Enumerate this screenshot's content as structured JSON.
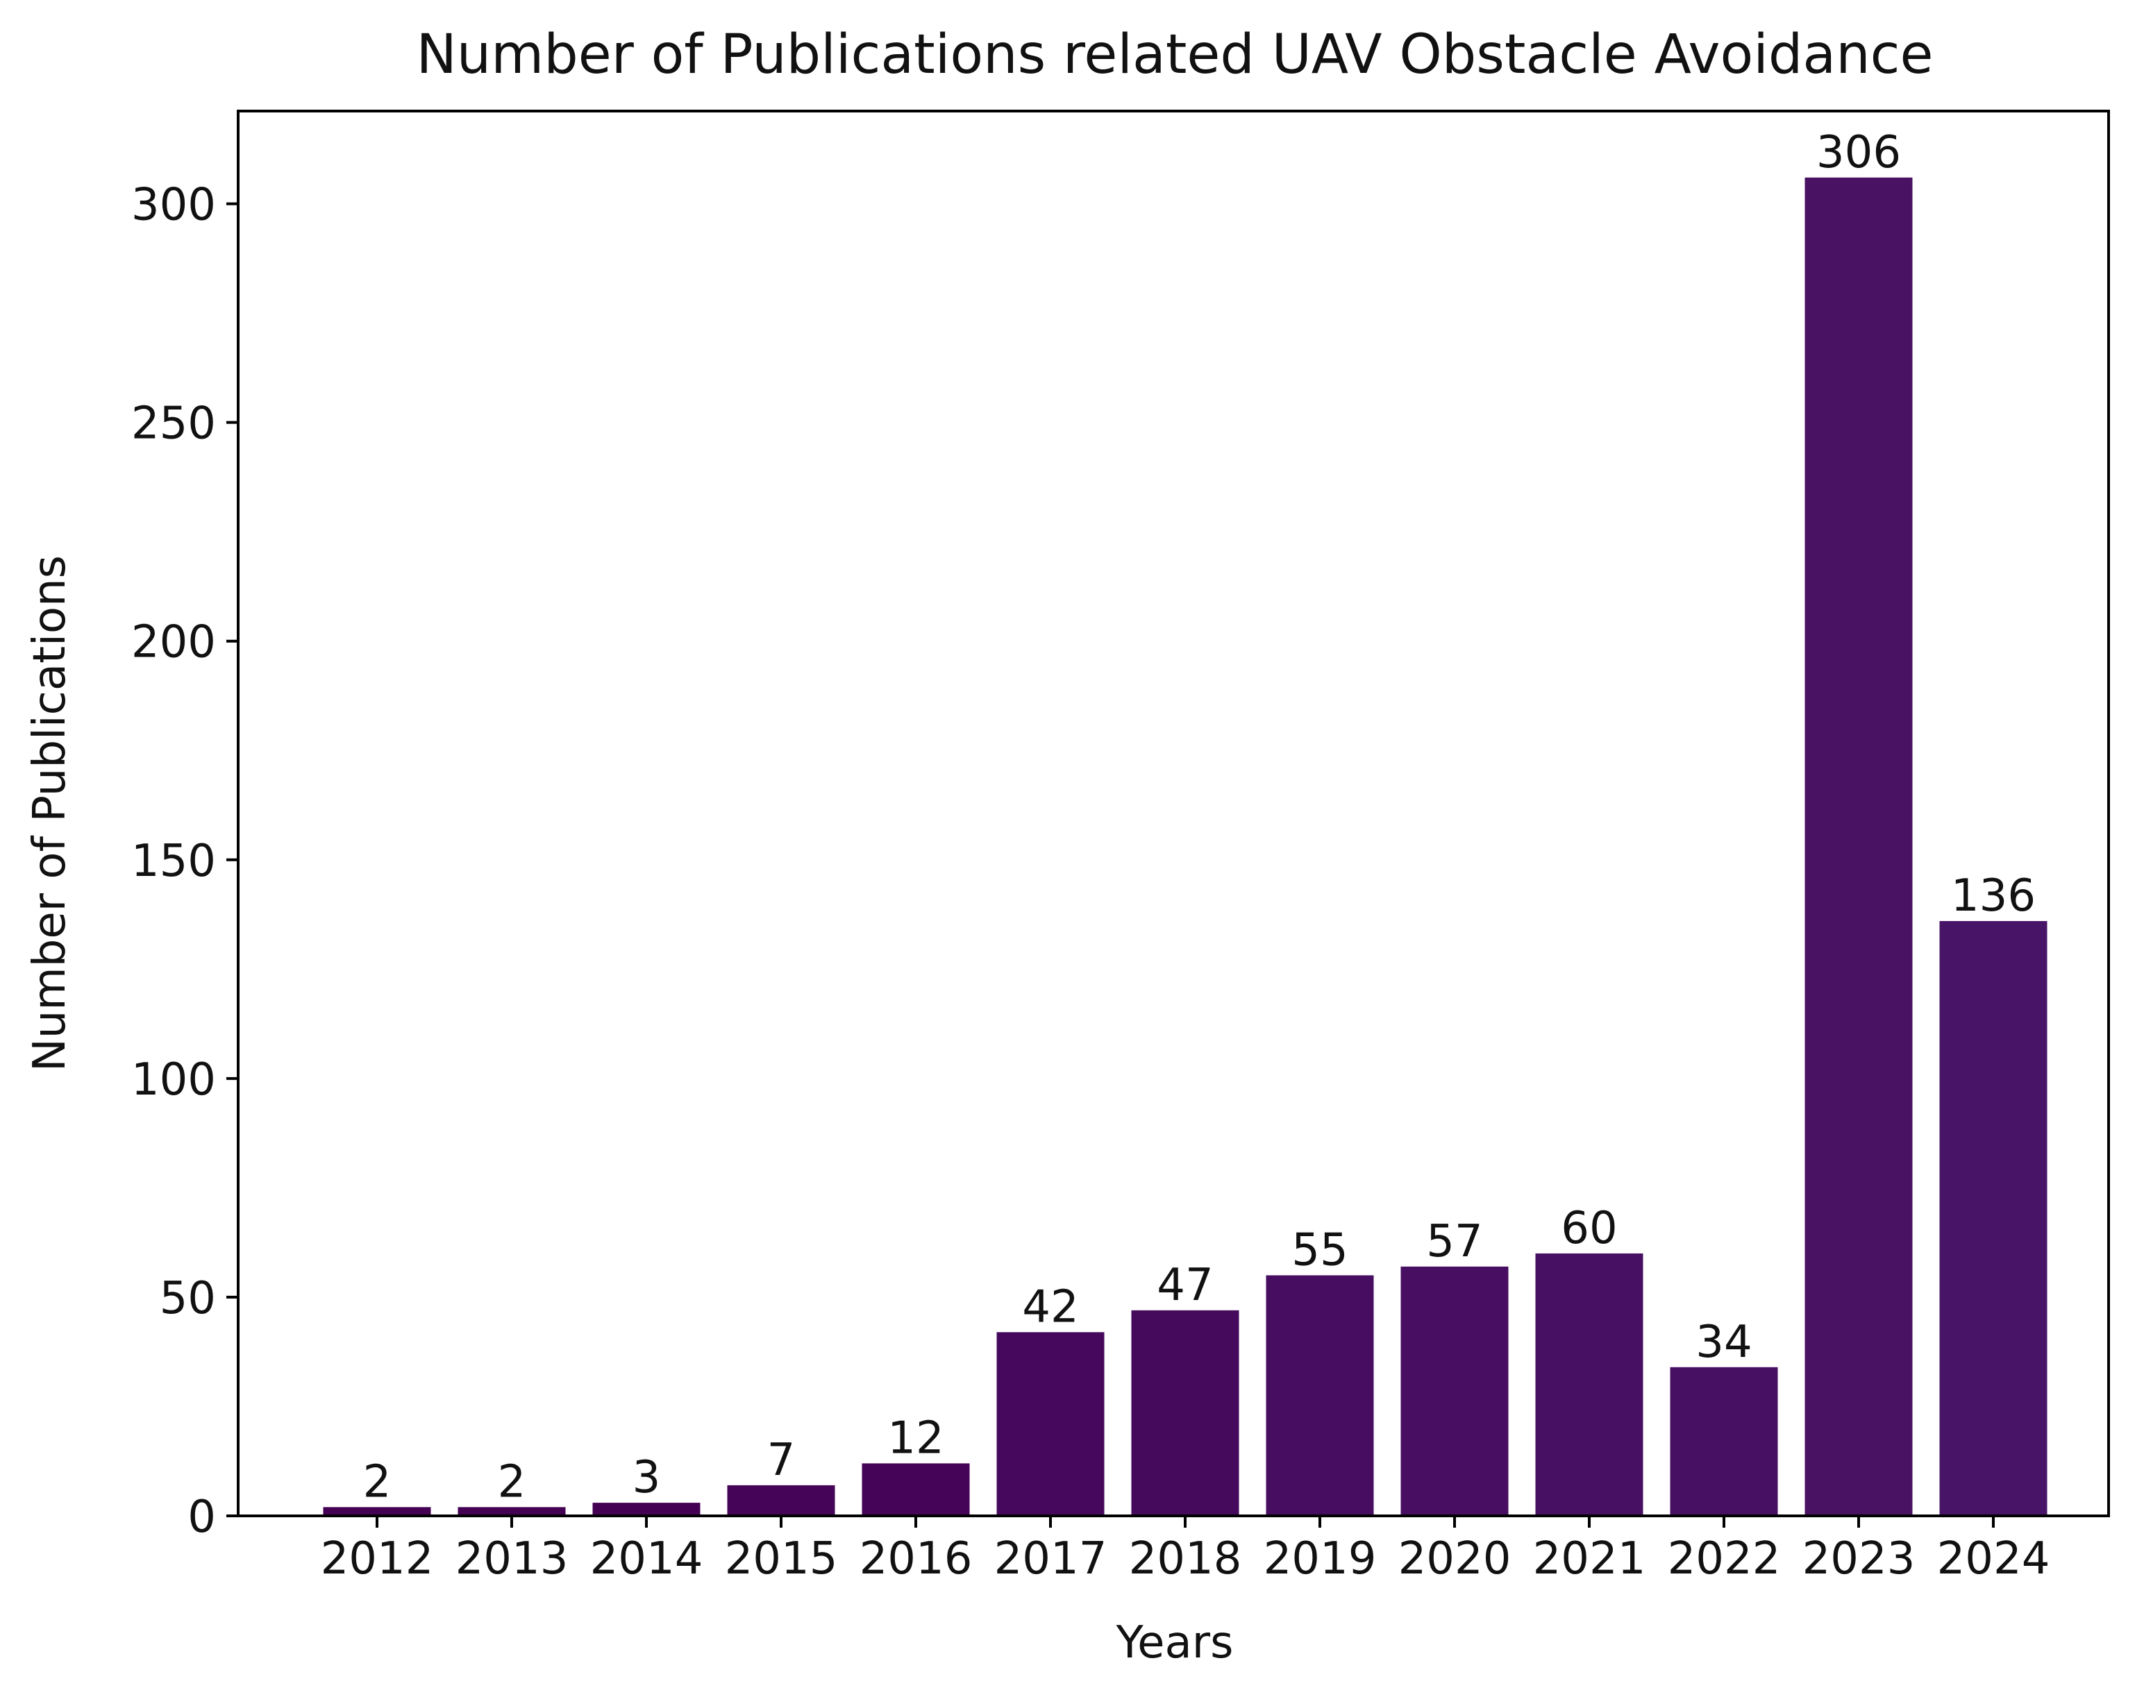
{
  "chart_data": {
    "type": "bar",
    "title": "Number of Publications related UAV Obstacle Avoidance",
    "xlabel": "Years",
    "ylabel": "Number of Publications",
    "categories": [
      "2012",
      "2013",
      "2014",
      "2015",
      "2016",
      "2017",
      "2018",
      "2019",
      "2020",
      "2021",
      "2022",
      "2023",
      "2024"
    ],
    "values": [
      2,
      2,
      3,
      7,
      12,
      42,
      47,
      55,
      57,
      60,
      34,
      306,
      136
    ],
    "data_labels": [
      "2",
      "2",
      "3",
      "7",
      "12",
      "42",
      "47",
      "55",
      "57",
      "60",
      "34",
      "306",
      "136"
    ],
    "ylim": [
      0,
      321.2
    ],
    "yticks": [
      0,
      50,
      100,
      150,
      200,
      250,
      300
    ],
    "ytick_labels": [
      "0",
      "50",
      "100",
      "150",
      "200",
      "250",
      "300"
    ],
    "grid": false,
    "bar_colors": [
      "#440154",
      "#440154",
      "#440154",
      "#450457",
      "#450457",
      "#46085c",
      "#460a5d",
      "#470d60",
      "#470e61",
      "#471063",
      "#471063",
      "#4a1262",
      "#481467"
    ]
  }
}
